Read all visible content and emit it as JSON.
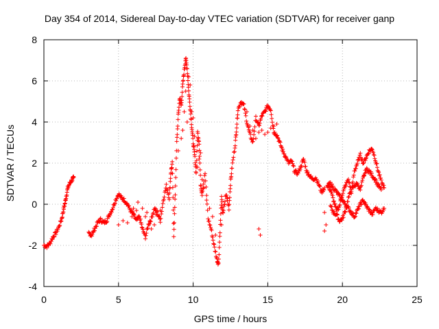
{
  "chart_data": {
    "type": "scatter",
    "title": "Day 354 of 2014, Sidereal Day-to-day VTEC variation (SDTVAR) for receiver ganp",
    "xlabel": "GPS time / hours",
    "ylabel": "SDTVAR / TECUs",
    "xlim": [
      0,
      25
    ],
    "ylim": [
      -4,
      8
    ],
    "xticks": [
      0,
      5,
      10,
      15,
      20,
      25
    ],
    "yticks": [
      -4,
      -2,
      0,
      2,
      4,
      6,
      8
    ],
    "grid": true,
    "marker": "+",
    "color": "#ff0000",
    "series": [
      {
        "name": "SDTVAR",
        "segments": [
          [
            [
              0.0,
              -2.0
            ],
            [
              0.2,
              -2.05
            ],
            [
              0.4,
              -1.9
            ],
            [
              0.6,
              -1.6
            ],
            [
              0.8,
              -1.4
            ],
            [
              1.0,
              -1.1
            ],
            [
              1.2,
              -0.7
            ],
            [
              1.3,
              -0.3
            ],
            [
              1.4,
              0.0
            ],
            [
              1.5,
              0.4
            ],
            [
              1.6,
              0.8
            ],
            [
              1.75,
              1.05
            ],
            [
              1.9,
              1.2
            ],
            [
              2.0,
              1.3
            ]
          ],
          [
            [
              3.0,
              -1.4
            ],
            [
              3.2,
              -1.5
            ],
            [
              3.4,
              -1.2
            ],
            [
              3.6,
              -0.9
            ],
            [
              3.8,
              -0.75
            ],
            [
              4.0,
              -0.9
            ],
            [
              4.2,
              -0.8
            ],
            [
              4.4,
              -0.5
            ],
            [
              4.6,
              -0.2
            ],
            [
              4.8,
              0.2
            ],
            [
              5.0,
              0.5
            ],
            [
              5.2,
              0.3
            ],
            [
              5.4,
              0.2
            ],
            [
              5.6,
              0.0
            ],
            [
              5.8,
              -0.3
            ],
            [
              6.0,
              -0.5
            ],
            [
              6.2,
              -0.8
            ],
            [
              6.4,
              -0.6
            ],
            [
              6.6,
              -1.2
            ],
            [
              6.8,
              -1.6
            ],
            [
              7.0,
              -1.0
            ],
            [
              7.2,
              -0.7
            ],
            [
              7.4,
              -0.2
            ],
            [
              7.6,
              -0.4
            ],
            [
              7.8,
              -0.8
            ],
            [
              8.0,
              0.2
            ],
            [
              8.2,
              0.9
            ],
            [
              8.4,
              0.3
            ],
            [
              8.5,
              1.5
            ],
            [
              8.6,
              2.0
            ],
            [
              8.7,
              -1.5
            ],
            [
              8.8,
              0.5
            ],
            [
              8.9,
              3.0
            ],
            [
              9.0,
              4.3
            ],
            [
              9.1,
              5.2
            ],
            [
              9.2,
              4.8
            ],
            [
              9.3,
              5.8
            ],
            [
              9.4,
              6.5
            ],
            [
              9.5,
              7.1
            ],
            [
              9.6,
              6.6
            ],
            [
              9.7,
              5.5
            ],
            [
              9.8,
              4.7
            ],
            [
              9.9,
              3.8
            ],
            [
              10.0,
              3.0
            ],
            [
              10.1,
              2.4
            ],
            [
              10.2,
              1.5
            ],
            [
              10.3,
              3.5
            ],
            [
              10.4,
              3.0
            ],
            [
              10.5,
              1.0
            ],
            [
              10.6,
              0.5
            ],
            [
              10.8,
              1.5
            ],
            [
              11.0,
              -0.7
            ],
            [
              11.2,
              -1.2
            ],
            [
              11.4,
              -2.0
            ],
            [
              11.6,
              -2.7
            ],
            [
              11.7,
              -2.9
            ],
            [
              11.8,
              -1.3
            ],
            [
              11.9,
              0.3
            ],
            [
              12.0,
              -0.5
            ],
            [
              12.2,
              0.5
            ],
            [
              12.4,
              -0.2
            ],
            [
              12.5,
              1.0
            ],
            [
              12.6,
              1.8
            ],
            [
              12.8,
              2.8
            ],
            [
              12.9,
              3.6
            ],
            [
              13.0,
              4.6
            ],
            [
              13.2,
              5.0
            ],
            [
              13.4,
              4.8
            ],
            [
              13.6,
              4.0
            ],
            [
              13.8,
              3.4
            ],
            [
              14.0,
              3.0
            ],
            [
              14.2,
              4.2
            ],
            [
              14.4,
              3.8
            ],
            [
              14.6,
              4.3
            ],
            [
              14.8,
              4.5
            ],
            [
              15.0,
              4.8
            ],
            [
              15.2,
              4.6
            ],
            [
              15.4,
              3.5
            ],
            [
              15.6,
              3.4
            ],
            [
              15.8,
              3.0
            ],
            [
              16.0,
              2.6
            ],
            [
              16.2,
              2.3
            ],
            [
              16.4,
              2.0
            ],
            [
              16.6,
              2.1
            ],
            [
              16.8,
              1.6
            ],
            [
              17.0,
              1.5
            ],
            [
              17.2,
              1.8
            ],
            [
              17.4,
              2.2
            ],
            [
              17.6,
              1.6
            ],
            [
              17.8,
              1.4
            ],
            [
              18.0,
              1.2
            ],
            [
              18.2,
              1.3
            ],
            [
              18.4,
              1.0
            ],
            [
              18.6,
              0.6
            ],
            [
              18.8,
              0.8
            ]
          ],
          [
            [
              19.0,
              0.9
            ],
            [
              19.2,
              0.7
            ],
            [
              19.4,
              0.2
            ],
            [
              19.6,
              -0.3
            ],
            [
              19.8,
              -0.1
            ],
            [
              20.0,
              0.5
            ],
            [
              20.2,
              0.9
            ],
            [
              20.4,
              1.2
            ],
            [
              20.6,
              0.6
            ],
            [
              20.8,
              1.6
            ],
            [
              21.0,
              2.0
            ],
            [
              21.2,
              2.4
            ],
            [
              21.4,
              2.0
            ],
            [
              21.6,
              2.3
            ],
            [
              21.8,
              2.6
            ],
            [
              22.0,
              2.7
            ],
            [
              22.2,
              2.2
            ],
            [
              22.4,
              1.6
            ],
            [
              22.6,
              1.1
            ],
            [
              22.8,
              0.8
            ]
          ],
          [
            [
              19.2,
              -0.1
            ],
            [
              19.4,
              -0.4
            ],
            [
              19.6,
              -0.5
            ],
            [
              19.8,
              -0.8
            ],
            [
              20.0,
              -0.7
            ],
            [
              20.2,
              -0.3
            ],
            [
              20.4,
              0.3
            ],
            [
              20.6,
              0.7
            ],
            [
              20.8,
              0.9
            ],
            [
              21.0,
              1.0
            ],
            [
              21.2,
              0.7
            ],
            [
              21.4,
              1.3
            ],
            [
              21.6,
              1.7
            ],
            [
              21.8,
              1.6
            ],
            [
              22.0,
              1.4
            ],
            [
              22.2,
              1.2
            ],
            [
              22.4,
              0.9
            ],
            [
              22.6,
              0.7
            ]
          ],
          [
            [
              19.0,
              0.9
            ],
            [
              19.2,
              1.0
            ],
            [
              19.4,
              0.8
            ],
            [
              19.6,
              0.6
            ],
            [
              19.8,
              0.4
            ],
            [
              20.0,
              0.2
            ],
            [
              20.2,
              0.0
            ],
            [
              20.4,
              -0.2
            ],
            [
              20.6,
              -0.4
            ],
            [
              20.8,
              -0.6
            ],
            [
              21.0,
              -0.3
            ],
            [
              21.2,
              0.0
            ],
            [
              21.4,
              0.2
            ],
            [
              21.6,
              -0.1
            ],
            [
              21.8,
              -0.3
            ],
            [
              22.0,
              -0.5
            ],
            [
              22.2,
              -0.2
            ],
            [
              22.4,
              -0.3
            ],
            [
              22.6,
              -0.4
            ],
            [
              22.8,
              -0.2
            ]
          ]
        ],
        "points": [
          [
            14.4,
            -1.2
          ],
          [
            14.5,
            -1.5
          ],
          [
            18.8,
            -1.3
          ],
          [
            18.9,
            -1.0
          ],
          [
            18.8,
            -0.4
          ],
          [
            9.3,
            3.6
          ],
          [
            9.5,
            5.5
          ],
          [
            9.6,
            4.0
          ],
          [
            9.7,
            6.2
          ],
          [
            9.8,
            5.8
          ],
          [
            9.9,
            4.5
          ],
          [
            10.0,
            4.2
          ],
          [
            10.1,
            3.3
          ],
          [
            9.4,
            4.5
          ],
          [
            9.2,
            3.2
          ],
          [
            9.0,
            2.6
          ],
          [
            10.3,
            1.8
          ],
          [
            10.4,
            2.2
          ],
          [
            10.5,
            2.5
          ],
          [
            10.6,
            1.2
          ],
          [
            10.7,
            0.8
          ],
          [
            10.9,
            0.2
          ],
          [
            11.1,
            -0.2
          ],
          [
            11.3,
            -0.6
          ],
          [
            11.5,
            -1.5
          ],
          [
            11.9,
            -1.0
          ],
          [
            12.1,
            0.0
          ],
          [
            12.3,
            0.3
          ],
          [
            13.6,
            4.5
          ],
          [
            13.8,
            3.8
          ],
          [
            14.0,
            3.6
          ],
          [
            14.2,
            3.2
          ],
          [
            14.4,
            3.5
          ],
          [
            14.6,
            3.6
          ],
          [
            14.8,
            3.4
          ],
          [
            15.0,
            3.5
          ],
          [
            15.2,
            3.7
          ],
          [
            15.4,
            3.8
          ],
          [
            15.6,
            3.9
          ],
          [
            5.0,
            -1.0
          ],
          [
            5.3,
            -0.8
          ],
          [
            5.6,
            -0.9
          ],
          [
            5.9,
            -0.6
          ],
          [
            6.2,
            -0.3
          ],
          [
            6.5,
            -0.9
          ],
          [
            6.8,
            -0.6
          ],
          [
            7.1,
            -0.8
          ],
          [
            7.5,
            -0.5
          ],
          [
            7.8,
            -0.3
          ],
          [
            6.0,
            -0.2
          ],
          [
            6.3,
            0.1
          ],
          [
            6.6,
            -0.2
          ],
          [
            6.9,
            -0.4
          ],
          [
            7.2,
            -1.2
          ],
          [
            7.4,
            -1.0
          ],
          [
            7.7,
            -0.6
          ]
        ]
      }
    ]
  }
}
